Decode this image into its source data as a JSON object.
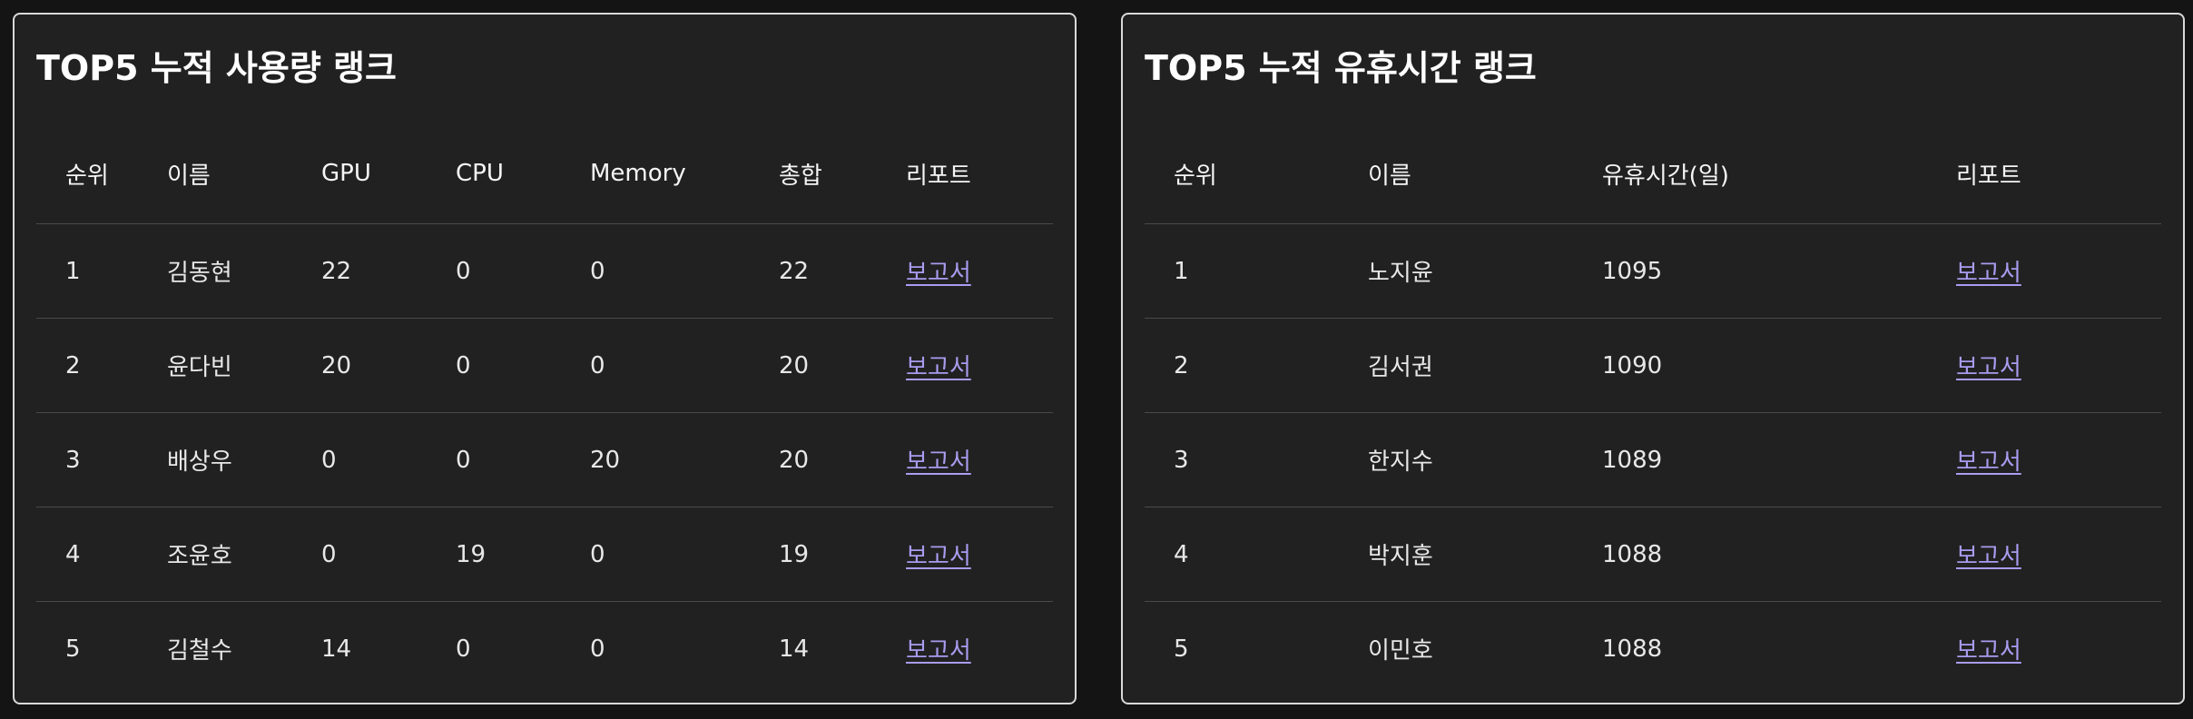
{
  "usage_panel": {
    "title": "TOP5 누적 사용량 랭크",
    "columns": [
      "순위",
      "이름",
      "GPU",
      "CPU",
      "Memory",
      "총합",
      "리포트"
    ],
    "rows": [
      {
        "rank": "1",
        "name": "김동현",
        "gpu": "22",
        "cpu": "0",
        "memory": "0",
        "total": "22",
        "report": "보고서"
      },
      {
        "rank": "2",
        "name": "윤다빈",
        "gpu": "20",
        "cpu": "0",
        "memory": "0",
        "total": "20",
        "report": "보고서"
      },
      {
        "rank": "3",
        "name": "배상우",
        "gpu": "0",
        "cpu": "0",
        "memory": "20",
        "total": "20",
        "report": "보고서"
      },
      {
        "rank": "4",
        "name": "조윤호",
        "gpu": "0",
        "cpu": "19",
        "memory": "0",
        "total": "19",
        "report": "보고서"
      },
      {
        "rank": "5",
        "name": "김철수",
        "gpu": "14",
        "cpu": "0",
        "memory": "0",
        "total": "14",
        "report": "보고서"
      }
    ]
  },
  "idle_panel": {
    "title": "TOP5 누적 유휴시간 랭크",
    "columns": [
      "순위",
      "이름",
      "유휴시간(일)",
      "리포트"
    ],
    "rows": [
      {
        "rank": "1",
        "name": "노지윤",
        "idle_days": "1095",
        "report": "보고서"
      },
      {
        "rank": "2",
        "name": "김서권",
        "idle_days": "1090",
        "report": "보고서"
      },
      {
        "rank": "3",
        "name": "한지수",
        "idle_days": "1089",
        "report": "보고서"
      },
      {
        "rank": "4",
        "name": "박지훈",
        "idle_days": "1088",
        "report": "보고서"
      },
      {
        "rank": "5",
        "name": "이민호",
        "idle_days": "1088",
        "report": "보고서"
      }
    ]
  },
  "colors": {
    "page_background": "#141414",
    "panel_background": "#212121",
    "panel_border": "#d9d9d9",
    "link": "#a99cf0",
    "divider": "#4a4a4a"
  }
}
